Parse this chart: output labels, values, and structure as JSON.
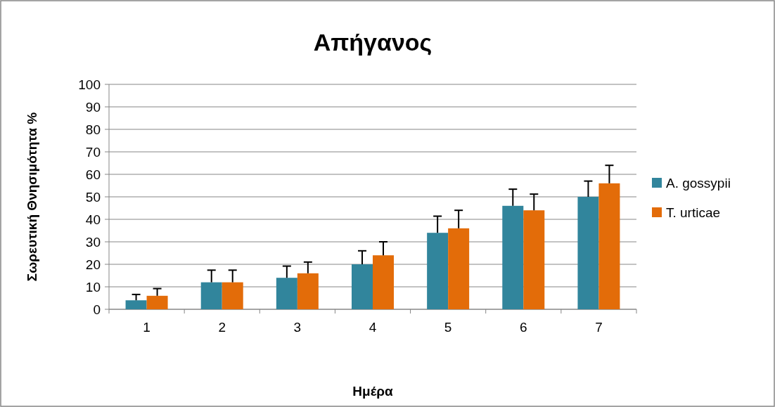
{
  "chart_data": {
    "type": "bar",
    "title": "Απήγανος",
    "xlabel": "Ημέρα",
    "ylabel": "Σωρευτική Θνησιμότητα %",
    "categories": [
      "1",
      "2",
      "3",
      "4",
      "5",
      "6",
      "7"
    ],
    "series": [
      {
        "name": "A. gossypii",
        "color": "#31859c",
        "values": [
          4,
          12,
          14,
          20,
          34,
          46,
          50
        ],
        "errors": [
          [
            4,
            6.6
          ],
          [
            12,
            17.4
          ],
          [
            14,
            19.2
          ],
          [
            20,
            26
          ],
          [
            34,
            41.4
          ],
          [
            46,
            53.4
          ],
          [
            50,
            57
          ]
        ]
      },
      {
        "name": "T. urticae",
        "color": "#e36c09",
        "values": [
          6,
          12,
          16,
          24,
          36,
          44,
          56
        ],
        "errors": [
          [
            6,
            9.2
          ],
          [
            12,
            17.4
          ],
          [
            16,
            21
          ],
          [
            24,
            30
          ],
          [
            36,
            44
          ],
          [
            44,
            51.2
          ],
          [
            56,
            64
          ]
        ]
      }
    ],
    "ylim": [
      0,
      100
    ],
    "yticks": [
      0,
      10,
      20,
      30,
      40,
      50,
      60,
      70,
      80,
      90,
      100
    ],
    "grid": "y",
    "legend": "right"
  }
}
